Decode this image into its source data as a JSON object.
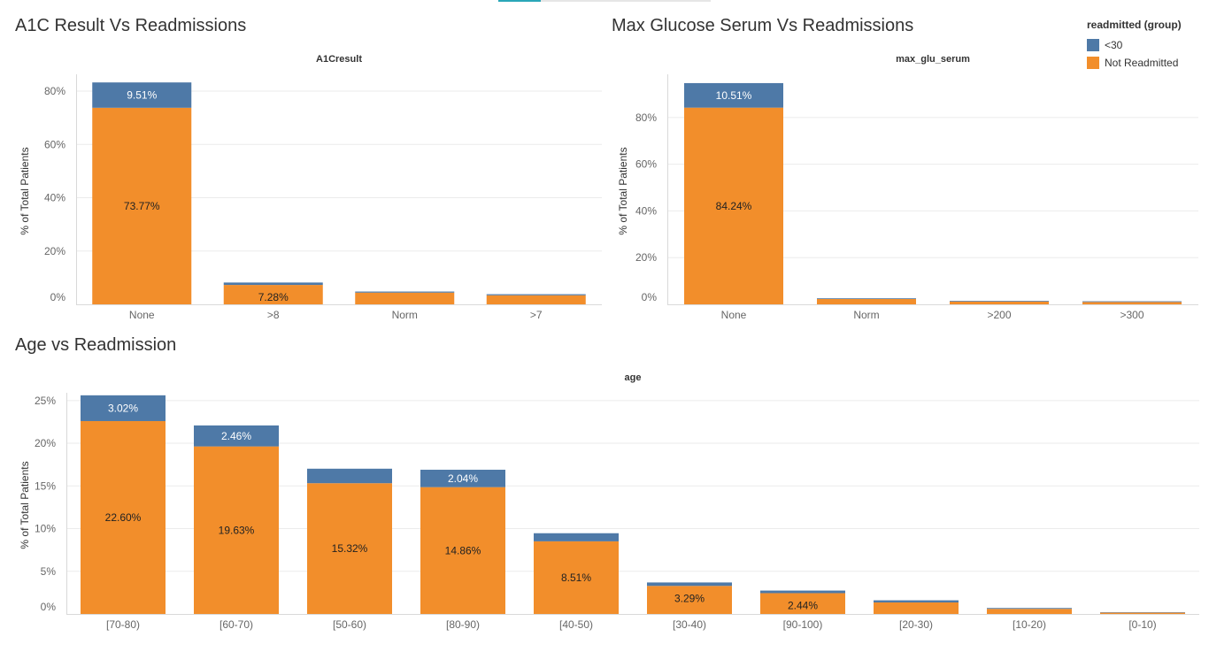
{
  "colors": {
    "readmitted_lt30": "#4e79a7",
    "not_readmitted": "#f28e2b"
  },
  "legend": {
    "title": "readmitted (group)",
    "items": [
      {
        "label": "<30",
        "color": "#4e79a7"
      },
      {
        "label": "Not Readmitted",
        "color": "#f28e2b"
      }
    ]
  },
  "charts": {
    "a1c": {
      "sheet_title": "A1C Result Vs Readmissions"
    },
    "glu": {
      "sheet_title": "Max Glucose Serum Vs Readmissions"
    },
    "age": {
      "sheet_title": "Age vs Readmission"
    }
  },
  "chart_data": [
    {
      "type": "bar",
      "stacked": true,
      "title": "A1C Result Vs Readmissions",
      "xlabel": "A1Cresult",
      "ylabel": "% of Total Patients",
      "ylim": [
        0,
        85
      ],
      "yticks": [
        "0%",
        "20%",
        "40%",
        "60%",
        "80%"
      ],
      "categories": [
        "None",
        ">8",
        "Norm",
        ">7"
      ],
      "series": [
        {
          "name": "Not Readmitted",
          "values": [
            73.77,
            7.28,
            4.4,
            3.4
          ],
          "labels": [
            "73.77%",
            "7.28%",
            "",
            ""
          ]
        },
        {
          "name": "<30",
          "values": [
            9.51,
            0.9,
            0.4,
            0.4
          ],
          "labels": [
            "9.51%",
            "",
            "",
            ""
          ]
        }
      ]
    },
    {
      "type": "bar",
      "stacked": true,
      "title": "Max Glucose Serum Vs Readmissions",
      "xlabel": "max_glu_serum",
      "ylabel": "% of Total Patients",
      "ylim": [
        0,
        97
      ],
      "yticks": [
        "0%",
        "20%",
        "40%",
        "60%",
        "80%"
      ],
      "categories": [
        "None",
        "Norm",
        ">200",
        ">300"
      ],
      "series": [
        {
          "name": "Not Readmitted",
          "values": [
            84.24,
            2.3,
            1.2,
            1.0
          ],
          "labels": [
            "84.24%",
            "",
            "",
            ""
          ]
        },
        {
          "name": "<30",
          "values": [
            10.51,
            0.3,
            0.3,
            0.3
          ],
          "labels": [
            "10.51%",
            "",
            "",
            ""
          ]
        }
      ]
    },
    {
      "type": "bar",
      "stacked": true,
      "title": "Age vs Readmission",
      "xlabel": "age",
      "ylabel": "% of Total Patients",
      "ylim": [
        0,
        25.5
      ],
      "yticks": [
        "0%",
        "5%",
        "10%",
        "15%",
        "20%",
        "25%"
      ],
      "categories": [
        "[70-80)",
        "[60-70)",
        "[50-60)",
        "[80-90)",
        "[40-50)",
        "[30-40)",
        "[90-100)",
        "[20-30)",
        "[10-20)",
        "[0-10)"
      ],
      "series": [
        {
          "name": "Not Readmitted",
          "values": [
            22.6,
            19.63,
            15.32,
            14.86,
            8.51,
            3.29,
            2.44,
            1.35,
            0.6,
            0.15
          ],
          "labels": [
            "22.60%",
            "19.63%",
            "15.32%",
            "14.86%",
            "8.51%",
            "3.29%",
            "2.44%",
            "",
            "",
            ""
          ]
        },
        {
          "name": "<30",
          "values": [
            3.02,
            2.46,
            1.7,
            2.04,
            0.95,
            0.4,
            0.3,
            0.25,
            0.1,
            0.05
          ],
          "labels": [
            "3.02%",
            "2.46%",
            "",
            "2.04%",
            "",
            "",
            "",
            "",
            "",
            ""
          ]
        }
      ]
    }
  ]
}
